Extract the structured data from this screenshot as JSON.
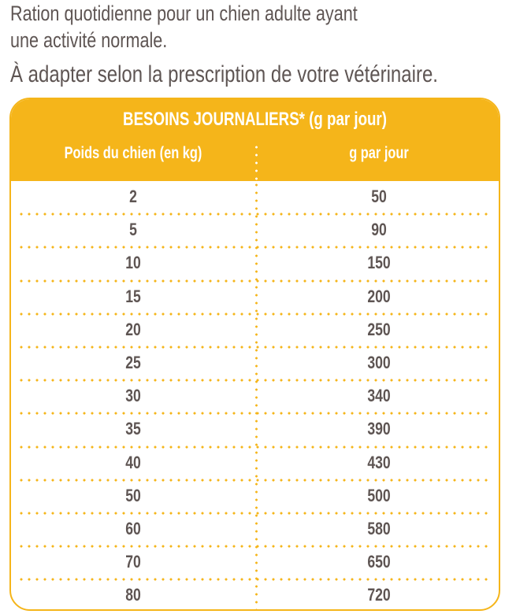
{
  "intro": {
    "line1": "Ration quotidienne pour un chien adulte ayant",
    "line2": "une activité normale.",
    "line3": "À adapter selon la prescription de votre vétérinaire."
  },
  "table": {
    "title": "BESOINS JOURNALIERS* (g par jour)",
    "columns": [
      "Poids du chien (en kg)",
      "g par jour"
    ],
    "accent_color": "#f5b51a",
    "rows": [
      {
        "weight": "2",
        "grams": "50"
      },
      {
        "weight": "5",
        "grams": "90"
      },
      {
        "weight": "10",
        "grams": "150"
      },
      {
        "weight": "15",
        "grams": "200"
      },
      {
        "weight": "20",
        "grams": "250"
      },
      {
        "weight": "25",
        "grams": "300"
      },
      {
        "weight": "30",
        "grams": "340"
      },
      {
        "weight": "35",
        "grams": "390"
      },
      {
        "weight": "40",
        "grams": "430"
      },
      {
        "weight": "50",
        "grams": "500"
      },
      {
        "weight": "60",
        "grams": "580"
      },
      {
        "weight": "70",
        "grams": "650"
      },
      {
        "weight": "80",
        "grams": "720"
      }
    ]
  }
}
